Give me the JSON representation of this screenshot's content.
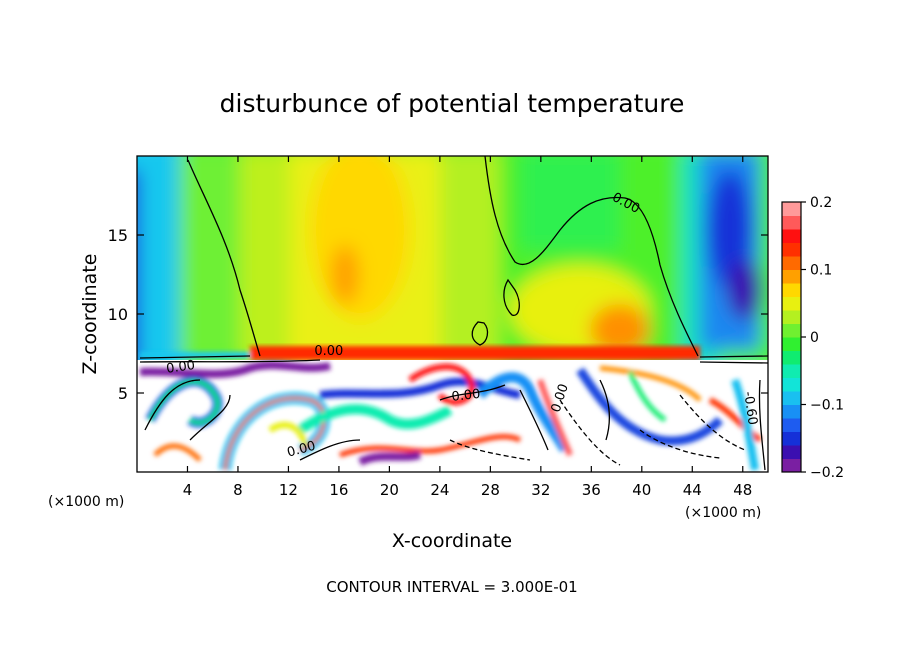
{
  "chart_data": {
    "type": "heatmap",
    "title": "disturbunce of potential temperature",
    "xlabel": "X-coordinate",
    "ylabel": "Z-coordinate",
    "x_unit_left": "(×1000 m)",
    "x_unit_right": "(×1000 m)",
    "xlim": [
      0,
      50
    ],
    "ylim": [
      0,
      20
    ],
    "x_ticks": [
      4,
      8,
      12,
      16,
      20,
      24,
      28,
      32,
      36,
      40,
      44,
      48
    ],
    "y_ticks": [
      5,
      10,
      15
    ],
    "colorbar": {
      "range": [
        -0.2,
        0.2
      ],
      "tick_values": [
        -0.2,
        -0.1,
        0,
        0.1,
        0.2
      ],
      "tick_labels": [
        "−0.2",
        "−0.1",
        "0",
        "0.1",
        "0.2"
      ],
      "colors": [
        "#7a1fa2",
        "#3b0fb0",
        "#1530d8",
        "#1e5cf0",
        "#1890f5",
        "#19c0f0",
        "#12e4d8",
        "#10ecb0",
        "#10ec70",
        "#30f030",
        "#70f030",
        "#b4f020",
        "#e8f010",
        "#ffd800",
        "#ffa000",
        "#ff6a00",
        "#ff3000",
        "#ff1010",
        "#ff5a5a",
        "#ff9a9a"
      ]
    },
    "contour_labels": [
      {
        "text": "0.00",
        "x": 15.2,
        "y": 7.4,
        "rotate": 0
      },
      {
        "text": "0.00",
        "x": 3.5,
        "y": 6.4,
        "rotate": -8
      },
      {
        "text": "0.00",
        "x": 38.6,
        "y": 16.8,
        "rotate": 28
      },
      {
        "text": "0.00",
        "x": 26.1,
        "y": 4.6,
        "rotate": -6
      },
      {
        "text": "0.00",
        "x": 33.8,
        "y": 4.6,
        "rotate": -72
      },
      {
        "text": "0.00",
        "x": 13.1,
        "y": 1.2,
        "rotate": -15
      },
      {
        "text": "-0.60",
        "x": 48.3,
        "y": 4.0,
        "rotate": 82
      }
    ],
    "annotation": "CONTOUR INTERVAL = 3.000E-01"
  }
}
